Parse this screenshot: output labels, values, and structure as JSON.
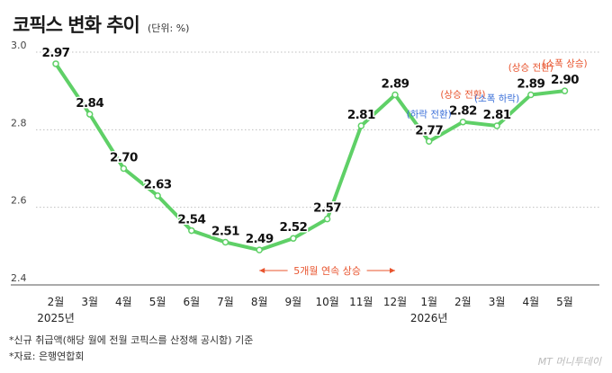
{
  "title": "코픽스 변화 추이",
  "unit": "(단위: %)",
  "notes": [
    "*신규 취급액(해당 월에 전월 코픽스를 산정해 공시함) 기준",
    "*자료: 은행연합회"
  ],
  "watermark": "MT 머니투데이",
  "colors": {
    "line": "#5fd067",
    "up": "#e8542e",
    "down": "#3a6fd8",
    "grid": "#bfbfbf"
  },
  "chart_data": {
    "type": "line",
    "title": "코픽스 변화 추이",
    "categories": [
      "2월",
      "3월",
      "4월",
      "5월",
      "6월",
      "7월",
      "8월",
      "9월",
      "10월",
      "11월",
      "12월",
      "1월",
      "2월",
      "3월",
      "4월",
      "5월"
    ],
    "year_labels": [
      {
        "index": 0,
        "label": "2025년"
      },
      {
        "index": 11,
        "label": "2026년"
      }
    ],
    "series": [
      {
        "values": [
          2.97,
          2.84,
          2.7,
          2.63,
          2.54,
          2.51,
          2.49,
          2.52,
          2.57,
          2.81,
          2.89,
          2.77,
          2.82,
          2.81,
          2.89,
          2.9
        ]
      }
    ],
    "yticks": [
      3.0,
      2.8,
      2.6,
      2.4
    ],
    "ylim": [
      2.4,
      3.0
    ],
    "grid": "horizontal dotted",
    "annotations": [
      {
        "index": 11,
        "text": "(하락 전환)",
        "tone": "down"
      },
      {
        "index": 12,
        "text": "(상승 전환)",
        "tone": "up"
      },
      {
        "index": 13,
        "text": "(소폭 하락)",
        "tone": "down"
      },
      {
        "index": 14,
        "text": "(상승 전환)",
        "tone": "up"
      },
      {
        "index": 15,
        "text": "(소폭 상승)",
        "tone": "up"
      }
    ],
    "range_note": {
      "from": 6,
      "to": 10,
      "text": "5개월 연속 상승"
    }
  }
}
